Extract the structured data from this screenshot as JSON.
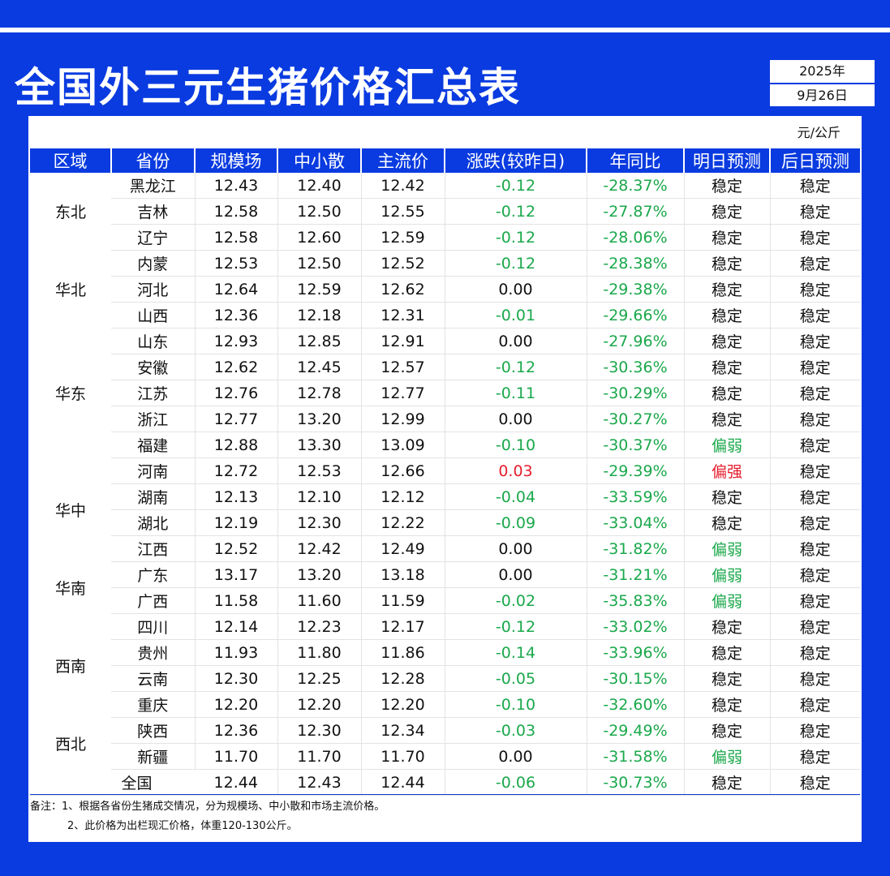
{
  "title": "全国外三元生猪价格汇总表",
  "date": {
    "year": "2025年",
    "day": "9月26日"
  },
  "unit": "元/公斤",
  "headers": [
    "区域",
    "省份",
    "规模场",
    "中小散",
    "主流价",
    "涨跌(较昨日)",
    "年同比",
    "明日预测",
    "后日预测"
  ],
  "regions": [
    {
      "name": "东北",
      "rows": [
        [
          "黑龙江",
          "12.43",
          "12.40",
          "12.42",
          "-0.12",
          "-28.37%",
          "稳定",
          "稳定"
        ],
        [
          "吉林",
          "12.58",
          "12.50",
          "12.55",
          "-0.12",
          "-27.87%",
          "稳定",
          "稳定"
        ],
        [
          "辽宁",
          "12.58",
          "12.60",
          "12.59",
          "-0.12",
          "-28.06%",
          "稳定",
          "稳定"
        ]
      ]
    },
    {
      "name": "华北",
      "rows": [
        [
          "内蒙",
          "12.53",
          "12.50",
          "12.52",
          "-0.12",
          "-28.38%",
          "稳定",
          "稳定"
        ],
        [
          "河北",
          "12.64",
          "12.59",
          "12.62",
          "0.00",
          "-29.38%",
          "稳定",
          "稳定"
        ],
        [
          "山西",
          "12.36",
          "12.18",
          "12.31",
          "-0.01",
          "-29.66%",
          "稳定",
          "稳定"
        ]
      ]
    },
    {
      "name": "华东",
      "rows": [
        [
          "山东",
          "12.93",
          "12.85",
          "12.91",
          "0.00",
          "-27.96%",
          "稳定",
          "稳定"
        ],
        [
          "安徽",
          "12.62",
          "12.45",
          "12.57",
          "-0.12",
          "-30.36%",
          "稳定",
          "稳定"
        ],
        [
          "江苏",
          "12.76",
          "12.78",
          "12.77",
          "-0.11",
          "-30.29%",
          "稳定",
          "稳定"
        ],
        [
          "浙江",
          "12.77",
          "13.20",
          "12.99",
          "0.00",
          "-30.27%",
          "稳定",
          "稳定"
        ],
        [
          "福建",
          "12.88",
          "13.30",
          "13.09",
          "-0.10",
          "-30.37%",
          "偏弱",
          "稳定"
        ]
      ]
    },
    {
      "name": "华中",
      "rows": [
        [
          "河南",
          "12.72",
          "12.53",
          "12.66",
          "0.03",
          "-29.39%",
          "偏强",
          "稳定"
        ],
        [
          "湖南",
          "12.13",
          "12.10",
          "12.12",
          "-0.04",
          "-33.59%",
          "稳定",
          "稳定"
        ],
        [
          "湖北",
          "12.19",
          "12.30",
          "12.22",
          "-0.09",
          "-33.04%",
          "稳定",
          "稳定"
        ],
        [
          "江西",
          "12.52",
          "12.42",
          "12.49",
          "0.00",
          "-31.82%",
          "偏弱",
          "稳定"
        ]
      ]
    },
    {
      "name": "华南",
      "rows": [
        [
          "广东",
          "13.17",
          "13.20",
          "13.18",
          "0.00",
          "-31.21%",
          "偏弱",
          "稳定"
        ],
        [
          "广西",
          "11.58",
          "11.60",
          "11.59",
          "-0.02",
          "-35.83%",
          "偏弱",
          "稳定"
        ]
      ]
    },
    {
      "name": "西南",
      "rows": [
        [
          "四川",
          "12.14",
          "12.23",
          "12.17",
          "-0.12",
          "-33.02%",
          "稳定",
          "稳定"
        ],
        [
          "贵州",
          "11.93",
          "11.80",
          "11.86",
          "-0.14",
          "-33.96%",
          "稳定",
          "稳定"
        ],
        [
          "云南",
          "12.30",
          "12.25",
          "12.28",
          "-0.05",
          "-30.15%",
          "稳定",
          "稳定"
        ],
        [
          "重庆",
          "12.20",
          "12.20",
          "12.20",
          "-0.10",
          "-32.60%",
          "稳定",
          "稳定"
        ]
      ]
    },
    {
      "name": "西北",
      "rows": [
        [
          "陕西",
          "12.36",
          "12.30",
          "12.34",
          "-0.03",
          "-29.49%",
          "稳定",
          "稳定"
        ],
        [
          "新疆",
          "11.70",
          "11.70",
          "11.70",
          "0.00",
          "-31.58%",
          "偏弱",
          "稳定"
        ]
      ]
    }
  ],
  "total": [
    "全国",
    "12.44",
    "12.43",
    "12.44",
    "-0.06",
    "-30.73%",
    "稳定",
    "稳定"
  ],
  "notes": [
    "备注：1、根据各省份生猪成交情况，分为规模场、中小散和市场主流价格。",
    "2、此价格为出栏现汇价格，体重120-130公斤。"
  ],
  "colors": {
    "accent": "#0a3be0",
    "down": "#1aa84b",
    "up": "#e51e2d"
  }
}
